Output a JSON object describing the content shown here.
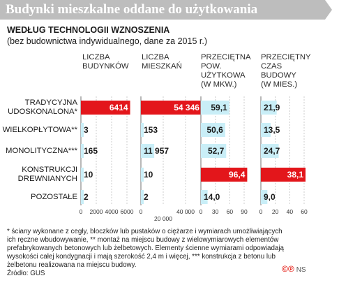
{
  "header": {
    "title": "Budynki mieszkalne oddane do użytkowania",
    "subtitle": "WEDŁUG TECHNOLOGII WZNOSZENIA",
    "subnote": "(bez budownictwa indywidualnego, dane za 2015 r.)"
  },
  "columns": [
    "LICZBA\nBUDYNKÓW",
    "LICZBA\nMIESZKAŃ",
    "PRZECIĘTNA\nPOW.\nUŻYTKOWA\n(W MKW.)",
    "PRZECIĘTNY\nCZAS\nBUDOWY\n(W MIES.)"
  ],
  "rows": [
    "TRADYCYJNA\nUDOSKONALONA*",
    "WIELKOPŁYTOWA**",
    "MONOLITYCZNA***",
    "KONSTRUKCJI\nDREWNIANYCH",
    "POZOSTAŁE"
  ],
  "chart_data": [
    {
      "type": "bar",
      "orientation": "horizontal",
      "title": "LICZBA BUDYNKÓW",
      "categories": [
        "TRADYCYJNA UDOSKONALONA*",
        "WIELKOPŁYTOWA**",
        "MONOLITYCZNA***",
        "KONSTRUKCJI DREWNIANYCH",
        "POZOSTAŁE"
      ],
      "values": [
        6414,
        3,
        165,
        10,
        2
      ],
      "value_labels": [
        "6414",
        "3",
        "165",
        "10",
        "2"
      ],
      "xlim": [
        0,
        6000
      ],
      "xticks": [
        "0",
        "2000",
        "4000",
        "6000"
      ]
    },
    {
      "type": "bar",
      "orientation": "horizontal",
      "title": "LICZBA MIESZKAŃ",
      "categories": [
        "TRADYCYJNA UDOSKONALONA*",
        "WIELKOPŁYTOWA**",
        "MONOLITYCZNA***",
        "KONSTRUKCJI DREWNIANYCH",
        "POZOSTAŁE"
      ],
      "values": [
        54346,
        153,
        11957,
        10,
        2
      ],
      "value_labels": [
        "54 346",
        "153",
        "11 957",
        "10",
        "2"
      ],
      "xlim": [
        0,
        40000
      ],
      "xticks": [
        "0",
        "20 000",
        "40 000"
      ],
      "xtick_values": [
        0,
        20000,
        40000
      ]
    },
    {
      "type": "bar",
      "orientation": "horizontal",
      "title": "PRZECIĘTNA POW. UŻYTKOWA (W MKW.)",
      "categories": [
        "TRADYCYJNA UDOSKONALONA*",
        "WIELKOPŁYTOWA**",
        "MONOLITYCZNA***",
        "KONSTRUKCJI DREWNIANYCH",
        "POZOSTAŁE"
      ],
      "values": [
        59.1,
        50.6,
        52.7,
        96.4,
        14.0
      ],
      "value_labels": [
        "59,1",
        "50,6",
        "52,7",
        "96,4",
        "14,0"
      ],
      "xlim": [
        0,
        90
      ],
      "xticks": [
        "0",
        "30",
        "60",
        "90"
      ],
      "xtick_values": [
        0,
        30,
        60,
        90
      ]
    },
    {
      "type": "bar",
      "orientation": "horizontal",
      "title": "PRZECIĘTNY CZAS BUDOWY (W MIES.)",
      "categories": [
        "TRADYCYJNA UDOSKONALONA*",
        "WIELKOPŁYTOWA**",
        "MONOLITYCZNA***",
        "KONSTRUKCJI DREWNIANYCH",
        "POZOSTAŁE"
      ],
      "values": [
        21.9,
        13.5,
        24.7,
        38.1,
        9.0
      ],
      "value_labels": [
        "21,9",
        "13,5",
        "24,7",
        "38,1",
        "9,0"
      ],
      "xlim": [
        0,
        60
      ],
      "xticks": [
        "0",
        "20",
        "40",
        "60"
      ],
      "xtick_values": [
        0,
        20,
        40,
        60
      ]
    }
  ],
  "colors": {
    "highlight": "#e3161b",
    "normal": "#c9eef7",
    "gridline": "#cccccc",
    "highlight_label": "#ffffff"
  },
  "footnote": "* ściany wykonane z cegły, bloczków lub pustaków o ciężarze i wymiarach umożliwiających\nich ręczne wbudowywanie, ** montaż na miejscu budowy z wielowymiarowych elementów\nprefabrykowanych betonowych lub żelbetowych. Elementy ścienne wymiarami odpowiadają\nwysokości całej kondygnacji i mają szerokość 2,4 m i więcej, *** konstrukcja z betonu lub\nżelbetonu realizowana na miejscu budowy.\nŹródło: GUS",
  "logos": {
    "mark": "©℗",
    "ns": "NS"
  }
}
